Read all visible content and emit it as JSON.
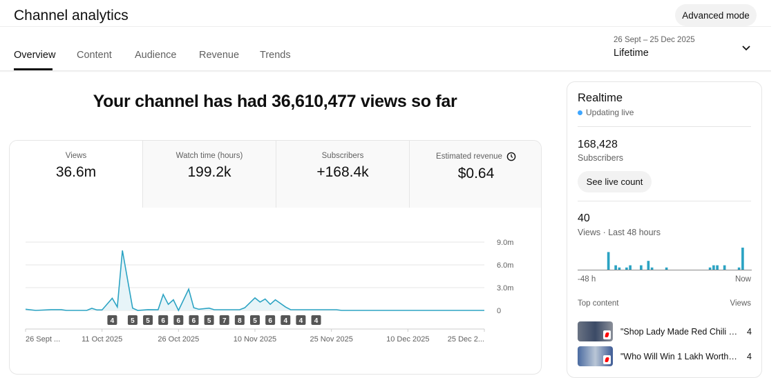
{
  "header": {
    "title": "Channel analytics",
    "advanced_mode": "Advanced mode",
    "tabs": [
      {
        "label": "Overview",
        "active": true
      },
      {
        "label": "Content"
      },
      {
        "label": "Audience"
      },
      {
        "label": "Revenue"
      },
      {
        "label": "Trends"
      }
    ],
    "date_range": "26 Sept – 25 Dec 2025",
    "period": "Lifetime"
  },
  "headline": "Your channel has had 36,610,477 views so far",
  "metrics": [
    {
      "label": "Views",
      "value": "36.6m",
      "active": true
    },
    {
      "label": "Watch time (hours)",
      "value": "199.2k"
    },
    {
      "label": "Subscribers",
      "value": "+168.4k"
    },
    {
      "label": "Estimated revenue",
      "value": "$0.64",
      "icon": "clock-icon"
    }
  ],
  "chart_data": {
    "type": "area",
    "color": "#2ba3c3",
    "fill": "#e7f4f8",
    "y_ticks": [
      "9.0m",
      "6.0m",
      "3.0m",
      "0"
    ],
    "y_tick_values": [
      9000000,
      6000000,
      3000000,
      0
    ],
    "ylim": [
      0,
      9000000
    ],
    "xlim": [
      "2025-09-26",
      "2025-12-25"
    ],
    "x_ticks": [
      {
        "label": "26 Sept ...",
        "date": "2025-09-26"
      },
      {
        "label": "11 Oct 2025",
        "date": "2025-10-11"
      },
      {
        "label": "26 Oct 2025",
        "date": "2025-10-26"
      },
      {
        "label": "10 Nov 2025",
        "date": "2025-11-10"
      },
      {
        "label": "25 Nov 2025",
        "date": "2025-11-25"
      },
      {
        "label": "10 Dec 2025",
        "date": "2025-12-10"
      },
      {
        "label": "25 Dec 2...",
        "date": "2025-12-25"
      }
    ],
    "points": [
      [
        "2025-09-26",
        150000
      ],
      [
        "2025-09-28",
        0
      ],
      [
        "2025-10-01",
        100000
      ],
      [
        "2025-10-03",
        100000
      ],
      [
        "2025-10-04",
        0
      ],
      [
        "2025-10-08",
        0
      ],
      [
        "2025-10-09",
        270000
      ],
      [
        "2025-10-10",
        60000
      ],
      [
        "2025-10-11",
        60000
      ],
      [
        "2025-10-13",
        1600000
      ],
      [
        "2025-10-14",
        450000
      ],
      [
        "2025-10-15",
        7900000
      ],
      [
        "2025-10-17",
        300000
      ],
      [
        "2025-10-18",
        0
      ],
      [
        "2025-10-20",
        100000
      ],
      [
        "2025-10-22",
        90000
      ],
      [
        "2025-10-23",
        2100000
      ],
      [
        "2025-10-24",
        800000
      ],
      [
        "2025-10-25",
        1400000
      ],
      [
        "2025-10-26",
        0
      ],
      [
        "2025-10-28",
        2800000
      ],
      [
        "2025-10-29",
        350000
      ],
      [
        "2025-10-30",
        150000
      ],
      [
        "2025-11-01",
        300000
      ],
      [
        "2025-11-02",
        90000
      ],
      [
        "2025-11-07",
        90000
      ],
      [
        "2025-11-08",
        350000
      ],
      [
        "2025-11-10",
        1650000
      ],
      [
        "2025-11-11",
        1100000
      ],
      [
        "2025-11-12",
        1500000
      ],
      [
        "2025-11-13",
        800000
      ],
      [
        "2025-11-14",
        1400000
      ],
      [
        "2025-11-16",
        450000
      ],
      [
        "2025-11-17",
        90000
      ],
      [
        "2025-11-26",
        90000
      ],
      [
        "2025-11-27",
        0
      ],
      [
        "2025-12-25",
        0
      ]
    ],
    "markers": [
      [
        "2025-10-13",
        "4"
      ],
      [
        "2025-10-17",
        "5"
      ],
      [
        "2025-10-20",
        "5"
      ],
      [
        "2025-10-23",
        "6"
      ],
      [
        "2025-10-26",
        "6"
      ],
      [
        "2025-10-29",
        "6"
      ],
      [
        "2025-11-01",
        "5"
      ],
      [
        "2025-11-04",
        "7"
      ],
      [
        "2025-11-07",
        "8"
      ],
      [
        "2025-11-10",
        "5"
      ],
      [
        "2025-11-13",
        "6"
      ],
      [
        "2025-11-16",
        "4"
      ],
      [
        "2025-11-19",
        "4"
      ],
      [
        "2025-11-22",
        "4"
      ]
    ]
  },
  "realtime": {
    "title": "Realtime",
    "status": "Updating live",
    "status_color": "#3ea6ff",
    "subscribers": "168,428",
    "subscribers_label": "Subscribers",
    "live_button": "See live count",
    "views": "40",
    "views_label": "Views · Last 48 hours",
    "hourly_views": [
      0,
      0,
      0,
      0,
      0,
      0,
      0,
      0,
      8,
      0,
      2,
      1,
      0,
      1,
      2,
      0,
      0,
      2,
      0,
      4,
      1,
      0,
      0,
      0,
      1,
      0,
      0,
      0,
      0,
      0,
      0,
      0,
      0,
      0,
      0,
      0,
      1,
      2,
      2,
      0,
      2,
      0,
      0,
      0,
      1,
      10,
      0,
      0
    ],
    "axis_start": "-48 h",
    "axis_end": "Now",
    "top_content_label": "Top content",
    "views_col": "Views",
    "top_content": [
      {
        "title": "\"Shop Lady Made Red Chili C...",
        "views": "4"
      },
      {
        "title": "\"Who Will Win 1 Lakh Worth o...",
        "views": "4"
      }
    ]
  }
}
